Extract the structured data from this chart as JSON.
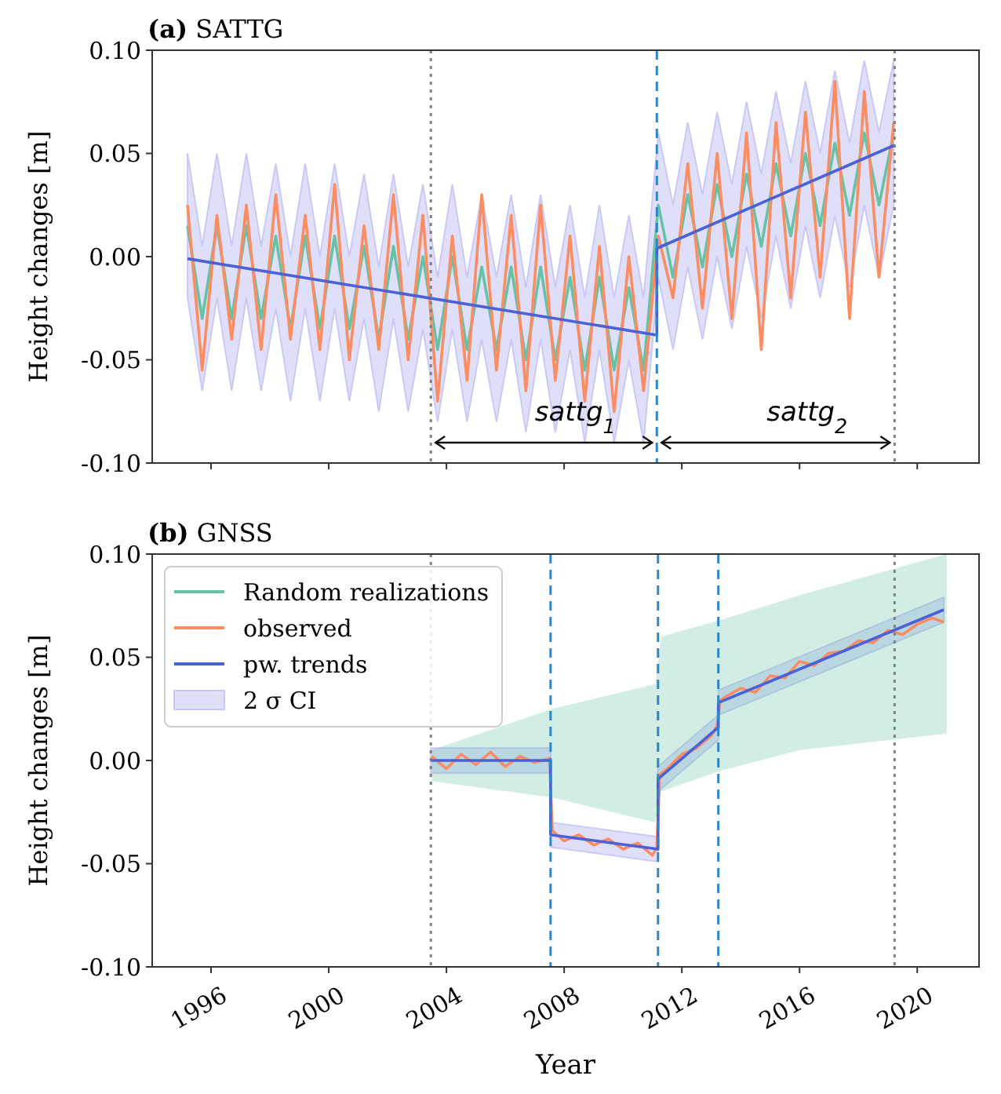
{
  "chart_data": [
    {
      "type": "line",
      "title": "(a) SATTG",
      "ylabel": "Height changes [m]",
      "xlim": [
        1994.0,
        2022.1
      ],
      "ylim": [
        -0.1,
        0.1
      ],
      "xticks": [
        1996,
        2000,
        2004,
        2008,
        2012,
        2016,
        2020
      ],
      "yticks": [
        {
          "value": -0.1,
          "label": "-0.10"
        },
        {
          "value": -0.05,
          "label": "-0.05"
        },
        {
          "value": 0,
          "label": "0.00"
        },
        {
          "value": 0.05,
          "label": "0.05"
        },
        {
          "value": 0.1,
          "label": "0.10"
        }
      ],
      "tick_labels": "y",
      "grid": false,
      "legend": false,
      "series": [
        {
          "type": "area",
          "color": "#c9c9f7",
          "values": [
            null,
            null,
            null,
            null,
            null,
            null,
            null,
            null,
            null,
            null,
            null,
            null,
            null,
            null,
            null,
            null,
            null,
            null,
            null,
            null,
            null,
            null,
            null,
            null,
            null,
            null,
            null,
            null,
            null,
            null,
            null,
            null,
            null,
            null,
            null,
            null,
            null,
            null,
            null,
            null,
            null,
            null,
            null,
            null,
            null,
            null,
            null,
            null,
            null
          ],
          "x": [
            1995.2,
            1995.7,
            1996.2,
            1996.7,
            1997.2,
            1997.7,
            1998.2,
            1998.7,
            1999.2,
            1999.7,
            2000.2,
            2000.7,
            2001.2,
            2001.7,
            2002.2,
            2002.7,
            2003.2,
            2003.7,
            2004.2,
            2004.7,
            2005.2,
            2005.7,
            2006.2,
            2006.7,
            2007.2,
            2007.7,
            2008.2,
            2008.7,
            2009.2,
            2009.7,
            2010.2,
            2010.7,
            2011.2,
            2011.7,
            2012.2,
            2012.7,
            2013.2,
            2013.7,
            2014.2,
            2014.7,
            2015.2,
            2015.7,
            2016.2,
            2016.7,
            2017.2,
            2017.7,
            2018.2,
            2018.7,
            2019.2
          ],
          "upper": [
            0.05,
            0.005,
            0.05,
            0.005,
            0.05,
            0.005,
            0.045,
            0.0,
            0.045,
            0.0,
            0.045,
            0.0,
            0.04,
            -0.005,
            0.04,
            -0.005,
            0.035,
            -0.01,
            0.035,
            -0.01,
            0.03,
            -0.01,
            0.03,
            -0.015,
            0.03,
            -0.015,
            0.025,
            -0.02,
            0.025,
            -0.02,
            0.02,
            -0.02,
            0.06,
            0.025,
            0.065,
            0.03,
            0.07,
            0.035,
            0.075,
            0.04,
            0.08,
            0.045,
            0.085,
            0.05,
            0.09,
            0.055,
            0.095,
            0.06,
            0.095
          ],
          "lower": [
            -0.02,
            -0.065,
            -0.02,
            -0.065,
            -0.02,
            -0.065,
            -0.025,
            -0.07,
            -0.025,
            -0.07,
            -0.025,
            -0.07,
            -0.03,
            -0.075,
            -0.03,
            -0.075,
            -0.035,
            -0.08,
            -0.035,
            -0.08,
            -0.04,
            -0.08,
            -0.04,
            -0.085,
            -0.04,
            -0.085,
            -0.045,
            -0.09,
            -0.045,
            -0.09,
            -0.05,
            -0.09,
            -0.01,
            -0.045,
            -0.005,
            -0.04,
            0.0,
            -0.035,
            0.005,
            -0.03,
            0.01,
            -0.025,
            0.015,
            -0.02,
            0.02,
            -0.015,
            0.025,
            -0.01,
            0.025
          ]
        },
        {
          "type": "line",
          "color": "#66c2a5",
          "x": [
            1995.2,
            1995.7,
            1996.2,
            1996.7,
            1997.2,
            1997.7,
            1998.2,
            1998.7,
            1999.2,
            1999.7,
            2000.2,
            2000.7,
            2001.2,
            2001.7,
            2002.2,
            2002.7,
            2003.2,
            2003.7,
            2004.2,
            2004.7,
            2005.2,
            2005.7,
            2006.2,
            2006.7,
            2007.2,
            2007.7,
            2008.2,
            2008.7,
            2009.2,
            2009.7,
            2010.2,
            2010.7,
            2011.2,
            2011.7,
            2012.2,
            2012.7,
            2013.2,
            2013.7,
            2014.2,
            2014.7,
            2015.2,
            2015.7,
            2016.2,
            2016.7,
            2017.2,
            2017.7,
            2018.2,
            2018.7,
            2019.2
          ],
          "values": [
            0.015,
            -0.03,
            0.015,
            -0.03,
            0.015,
            -0.03,
            0.01,
            -0.035,
            0.01,
            -0.035,
            0.01,
            -0.035,
            0.005,
            -0.04,
            0.005,
            -0.04,
            0.0,
            -0.045,
            0.0,
            -0.045,
            -0.005,
            -0.045,
            -0.005,
            -0.05,
            -0.005,
            -0.05,
            -0.01,
            -0.055,
            -0.01,
            -0.055,
            -0.015,
            -0.055,
            0.025,
            -0.01,
            0.03,
            -0.005,
            0.035,
            0.0,
            0.04,
            0.005,
            0.045,
            0.01,
            0.05,
            0.015,
            0.055,
            0.02,
            0.06,
            0.025,
            0.06
          ]
        },
        {
          "type": "line",
          "color": "#fc8d62",
          "x": [
            1995.2,
            1995.7,
            1996.2,
            1996.7,
            1997.2,
            1997.7,
            1998.2,
            1998.7,
            1999.2,
            1999.7,
            2000.2,
            2000.7,
            2001.2,
            2001.7,
            2002.2,
            2002.7,
            2003.2,
            2003.7,
            2004.2,
            2004.7,
            2005.2,
            2005.7,
            2006.2,
            2006.7,
            2007.2,
            2007.7,
            2008.2,
            2008.7,
            2009.2,
            2009.7,
            2010.2,
            2010.7,
            2011.2,
            2011.7,
            2012.2,
            2012.7,
            2013.2,
            2013.7,
            2014.2,
            2014.7,
            2015.2,
            2015.7,
            2016.2,
            2016.7,
            2017.2,
            2017.7,
            2018.2,
            2018.7,
            2019.2
          ],
          "values": [
            0.025,
            -0.055,
            0.02,
            -0.04,
            0.025,
            -0.045,
            0.03,
            -0.04,
            0.02,
            -0.045,
            0.035,
            -0.05,
            0.015,
            -0.045,
            0.03,
            -0.05,
            0.02,
            -0.07,
            0.01,
            -0.06,
            0.03,
            -0.055,
            0.02,
            -0.065,
            0.025,
            -0.06,
            0.01,
            -0.07,
            0.005,
            -0.075,
            0.0,
            -0.065,
            0.01,
            -0.02,
            0.045,
            -0.025,
            0.05,
            -0.03,
            0.06,
            -0.045,
            0.065,
            -0.02,
            0.07,
            -0.01,
            0.085,
            -0.03,
            0.08,
            -0.01,
            0.065
          ]
        },
        {
          "type": "line",
          "color": "#4a61d8",
          "x": [
            1995.2,
            2011.15,
            2011.15,
            2019.23
          ],
          "values": [
            -0.001,
            -0.038,
            0.004,
            0.054
          ]
        }
      ],
      "ref_lines": [
        {
          "axis": "x",
          "value": 2003.47,
          "color": "#808080",
          "line_style": "dotted"
        },
        {
          "axis": "x",
          "value": 2011.15,
          "color": "#2f86c6",
          "line_style": "dashed"
        },
        {
          "axis": "x",
          "value": 2019.23,
          "color": "#808080",
          "line_style": "dotted"
        }
      ],
      "annotations": [
        "sattg$_{1}$",
        "sattg$_{2}$"
      ]
    },
    {
      "type": "line",
      "title": "(b) GNSS",
      "xlabel": "Year",
      "ylabel": "Height changes [m]",
      "xlim": [
        1994.0,
        2022.1
      ],
      "ylim": [
        -0.1,
        0.1
      ],
      "xticks": [
        1996,
        2000,
        2004,
        2008,
        2012,
        2016,
        2020
      ],
      "yticks": [
        {
          "value": -0.1,
          "label": "-0.10"
        },
        {
          "value": -0.05,
          "label": "-0.05"
        },
        {
          "value": 0,
          "label": "0.00"
        },
        {
          "value": 0.05,
          "label": "0.05"
        },
        {
          "value": 0.1,
          "label": "0.10"
        }
      ],
      "grid": false,
      "legend": "top left",
      "series": [
        {
          "type": "line",
          "name": "Random realizations",
          "color": "#66c2a5",
          "x": [
            2003.5,
            2007.6,
            2011.1,
            2011.3,
            2013.3,
            2016,
            2021
          ],
          "values": [
            null,
            null,
            null,
            null,
            null,
            null,
            null
          ],
          "upper": [
            0.005,
            0.025,
            0.037,
            0.06,
            0.068,
            0.08,
            0.1
          ],
          "lower": [
            -0.01,
            -0.018,
            -0.03,
            -0.015,
            -0.005,
            0.005,
            0.013
          ]
        },
        {
          "type": "line",
          "name": "observed",
          "color": "#fc8d62",
          "x": [
            2003.5,
            2004,
            2004.5,
            2005,
            2005.5,
            2006,
            2006.5,
            2007,
            2007.5,
            2007.6,
            2008,
            2008.5,
            2009,
            2009.5,
            2010,
            2010.5,
            2011,
            2011.15,
            2011.25,
            2011.5,
            2012,
            2012.5,
            2013,
            2013.2,
            2013.3,
            2013.5,
            2014,
            2014.5,
            2015,
            2015.5,
            2016,
            2016.5,
            2017,
            2017.5,
            2018,
            2018.5,
            2019,
            2019.5,
            2020,
            2020.5,
            2020.9
          ],
          "values": [
            0.002,
            -0.004,
            0.003,
            -0.002,
            0.004,
            -0.003,
            0.002,
            -0.001,
            0.001,
            -0.034,
            -0.039,
            -0.036,
            -0.041,
            -0.038,
            -0.043,
            -0.04,
            -0.046,
            -0.042,
            -0.007,
            -0.004,
            0.003,
            0.006,
            0.012,
            0.017,
            0.029,
            0.031,
            0.035,
            0.033,
            0.041,
            0.04,
            0.048,
            0.046,
            0.052,
            0.053,
            0.058,
            0.057,
            0.063,
            0.061,
            0.066,
            0.069,
            0.067
          ]
        },
        {
          "type": "line",
          "name": "pw. trends",
          "color": "#4a61d8",
          "x": [
            2003.47,
            2007.54,
            2007.54,
            2011.19,
            2011.19,
            2013.24,
            2013.24,
            2020.9
          ],
          "values": [
            0,
            0,
            -0.036,
            -0.043,
            -0.009,
            0.016,
            0.028,
            0.073
          ]
        },
        {
          "type": "area",
          "name": "2 σ CI",
          "color": "#c9c9f7",
          "x": [
            2003.47,
            2007.54,
            2007.54,
            2011.19,
            2011.19,
            2013.24,
            2013.24,
            2020.9
          ],
          "values": [
            null,
            null,
            null,
            null,
            null,
            null,
            null,
            null
          ],
          "upper": [
            0.006,
            0.006,
            -0.03,
            -0.037,
            -0.003,
            0.022,
            0.034,
            0.079
          ],
          "lower": [
            -0.006,
            -0.006,
            -0.042,
            -0.049,
            -0.015,
            0.01,
            0.022,
            0.067
          ]
        }
      ],
      "ref_lines": [
        {
          "axis": "x",
          "value": 2003.47,
          "color": "#808080",
          "line_style": "dotted"
        },
        {
          "axis": "x",
          "value": 2007.54,
          "color": "#2f86c6",
          "line_style": "dashed"
        },
        {
          "axis": "x",
          "value": 2011.19,
          "color": "#2f86c6",
          "line_style": "dashed"
        },
        {
          "axis": "x",
          "value": 2013.24,
          "color": "#2f86c6",
          "line_style": "dashed"
        },
        {
          "axis": "x",
          "value": 2019.23,
          "color": "#808080",
          "line_style": "dotted"
        }
      ]
    }
  ]
}
